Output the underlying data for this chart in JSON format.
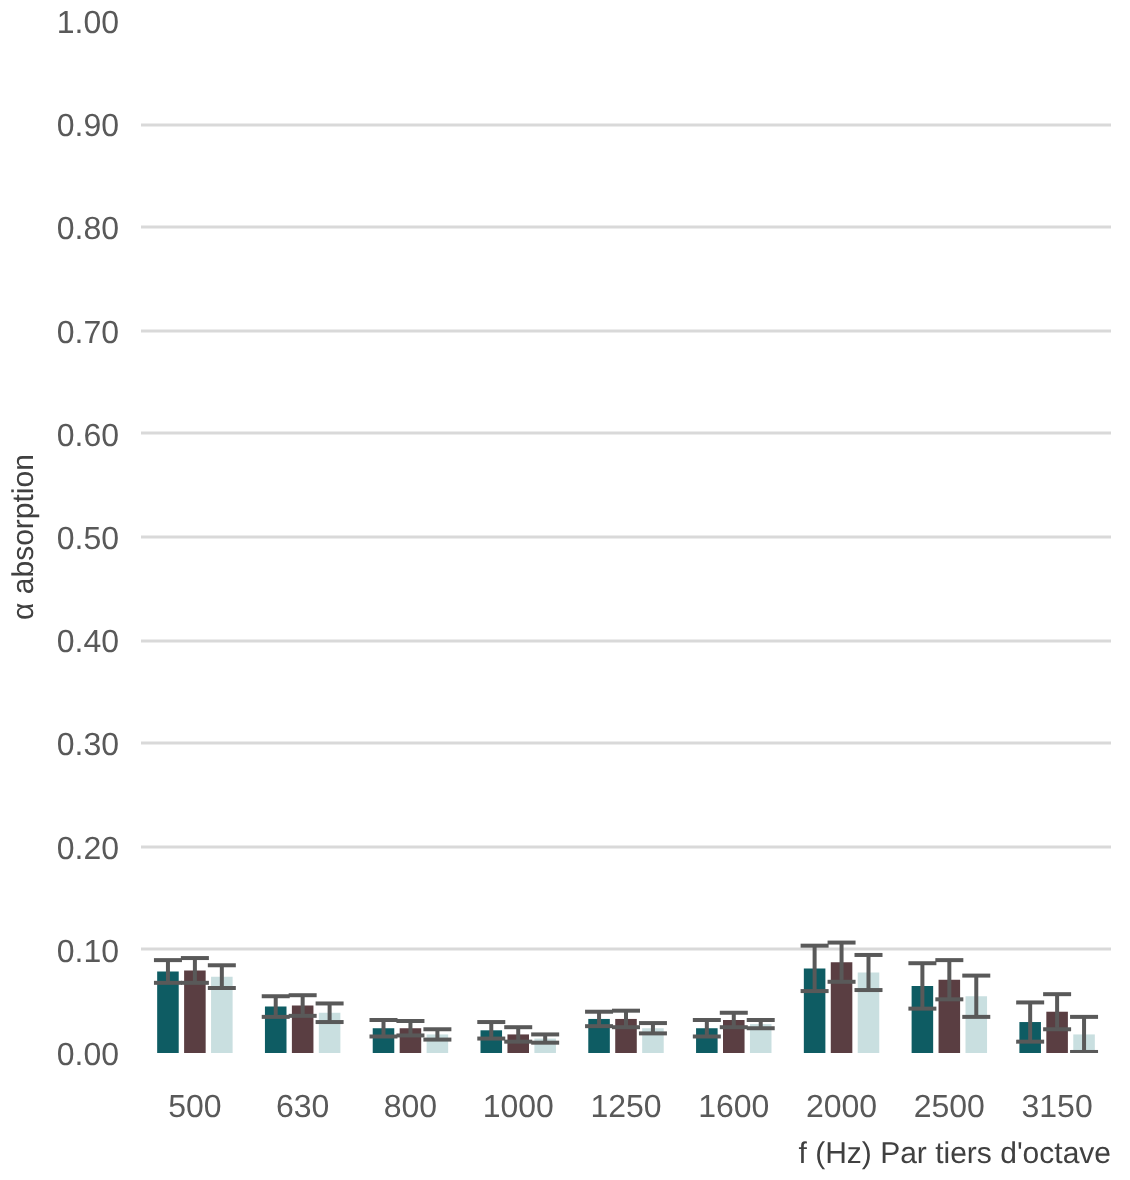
{
  "chart_data": {
    "type": "bar",
    "xlabel": "f (Hz) Par tiers d'octave",
    "ylabel": "α absorption",
    "categories": [
      "500",
      "630",
      "800",
      "1000",
      "1250",
      "1600",
      "2000",
      "2500",
      "3150"
    ],
    "series": [
      {
        "color": "#0e5c63",
        "values": [
          0.079,
          0.045,
          0.024,
          0.022,
          0.033,
          0.024,
          0.082,
          0.065,
          0.03
        ],
        "errors": [
          0.011,
          0.01,
          0.008,
          0.008,
          0.007,
          0.008,
          0.022,
          0.022,
          0.019
        ]
      },
      {
        "color": "#5a3e42",
        "values": [
          0.08,
          0.046,
          0.024,
          0.018,
          0.033,
          0.032,
          0.088,
          0.071,
          0.04
        ],
        "errors": [
          0.012,
          0.01,
          0.007,
          0.007,
          0.008,
          0.007,
          0.019,
          0.019,
          0.017
        ]
      },
      {
        "color": "#c9dfe0",
        "values": [
          0.074,
          0.039,
          0.018,
          0.014,
          0.024,
          0.028,
          0.078,
          0.055,
          0.018
        ],
        "errors": [
          0.011,
          0.009,
          0.005,
          0.004,
          0.005,
          0.004,
          0.017,
          0.02,
          0.017
        ]
      }
    ],
    "ylim": [
      0,
      1.0
    ],
    "yticks": [
      {
        "value": 0,
        "label": "0.00"
      },
      {
        "value": 0.1,
        "label": "0.10"
      },
      {
        "value": 0.2,
        "label": "0.20"
      },
      {
        "value": 0.3,
        "label": "0.30"
      },
      {
        "value": 0.4,
        "label": "0.40"
      },
      {
        "value": 0.5,
        "label": "0.50"
      },
      {
        "value": 0.6,
        "label": "0.60"
      },
      {
        "value": 0.7,
        "label": "0.70"
      },
      {
        "value": 0.8,
        "label": "0.80"
      },
      {
        "value": 0.9,
        "label": "0.90"
      },
      {
        "value": 1.0,
        "label": "1.00"
      }
    ],
    "grid": "y"
  }
}
